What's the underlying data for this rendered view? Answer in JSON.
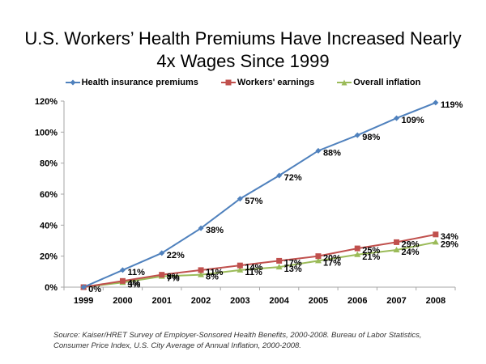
{
  "chart_data": {
    "type": "line",
    "title_line1": "U.S.  Workers’ Health Premiums Have Increased Nearly",
    "title_line2": "4x Wages Since 1999",
    "xlabel": "",
    "ylabel": "",
    "categories": [
      "1999",
      "2000",
      "2001",
      "2002",
      "2003",
      "2004",
      "2005",
      "2006",
      "2007",
      "2008"
    ],
    "ylim": [
      0,
      120
    ],
    "yticks": [
      0,
      20,
      40,
      60,
      80,
      100,
      120
    ],
    "ytick_labels": [
      "0%",
      "20%",
      "40%",
      "60%",
      "80%",
      "100%",
      "120%"
    ],
    "grid": false,
    "legend_position": "top",
    "series": [
      {
        "name": "Health insurance premiums",
        "color": "#4F81BD",
        "marker": "diamond",
        "values": [
          0,
          11,
          22,
          38,
          57,
          72,
          88,
          98,
          109,
          119
        ],
        "labels": [
          "0%",
          "11%",
          "22%",
          "38%",
          "57%",
          "72%",
          "88%",
          "98%",
          "109%",
          "119%"
        ]
      },
      {
        "name": "Workers' earnings",
        "color": "#C0504D",
        "marker": "square",
        "values": [
          0,
          4,
          8,
          11,
          14,
          17,
          20,
          25,
          29,
          34
        ],
        "labels": [
          "",
          "4%",
          "8%",
          "11%",
          "14%",
          "17%",
          "20%",
          "25%",
          "29%",
          "34%"
        ]
      },
      {
        "name": "Overall inflation",
        "color": "#9BBB59",
        "marker": "triangle",
        "values": [
          0,
          3,
          7,
          8,
          11,
          13,
          17,
          21,
          24,
          29
        ],
        "labels": [
          "",
          "3%",
          "7%",
          "8%",
          "11%",
          "13%",
          "17%",
          "21%",
          "24%",
          "29%"
        ]
      }
    ]
  },
  "source_text": "Source: Kaiser/HRET Survey of Employer-Sonsored Health Benefits, 2000-2008. Bureau of Labor Statistics, Consumer Price Index, U.S. City Average of Annual Inflation, 2000-2008."
}
